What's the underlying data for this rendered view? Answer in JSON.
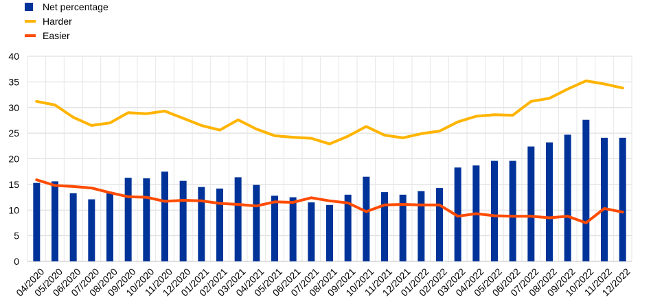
{
  "chart_data": {
    "type": "bar",
    "categories": [
      "04/2020",
      "05/2020",
      "06/2020",
      "07/2020",
      "08/2020",
      "09/2020",
      "10/2020",
      "11/2020",
      "12/2020",
      "01/2021",
      "02/2021",
      "03/2021",
      "04/2021",
      "05/2021",
      "06/2021",
      "07/2021",
      "08/2021",
      "09/2021",
      "10/2021",
      "11/2021",
      "12/2021",
      "01/2022",
      "02/2022",
      "03/2022",
      "04/2022",
      "05/2022",
      "06/2022",
      "07/2022",
      "08/2022",
      "09/2022",
      "10/2022",
      "11/2022",
      "12/2022"
    ],
    "series": [
      {
        "name": "Net percentage",
        "type": "bar",
        "color": "#003399",
        "values": [
          15.3,
          15.6,
          13.3,
          12.1,
          13.3,
          16.3,
          16.2,
          17.5,
          15.7,
          14.5,
          14.2,
          16.4,
          14.9,
          12.8,
          12.5,
          11.5,
          11.0,
          13.0,
          16.5,
          13.5,
          13.0,
          13.7,
          14.3,
          18.3,
          18.7,
          19.6,
          19.6,
          22.4,
          23.2,
          24.7,
          27.6,
          24.1,
          24.1
        ]
      },
      {
        "name": "Harder",
        "type": "line",
        "color": "#FFB400",
        "values": [
          31.2,
          30.5,
          28.1,
          26.5,
          27.0,
          29.0,
          28.8,
          29.3,
          27.9,
          26.5,
          25.6,
          27.6,
          25.8,
          24.5,
          24.2,
          24.0,
          22.9,
          24.4,
          26.3,
          24.6,
          24.1,
          24.9,
          25.4,
          27.2,
          28.3,
          28.6,
          28.5,
          31.2,
          31.8,
          33.6,
          35.2,
          34.6,
          33.8
        ]
      },
      {
        "name": "Easier",
        "type": "line",
        "color": "#FF4B00",
        "values": [
          15.9,
          14.8,
          14.6,
          14.3,
          13.4,
          12.6,
          12.5,
          11.7,
          11.9,
          11.8,
          11.3,
          11.1,
          10.8,
          11.6,
          11.5,
          12.4,
          11.8,
          11.4,
          9.7,
          11.0,
          11.1,
          11.0,
          11.0,
          8.8,
          9.3,
          8.9,
          8.8,
          8.8,
          8.5,
          8.8,
          7.5,
          10.3,
          9.6
        ]
      }
    ],
    "ylim": [
      0,
      40
    ],
    "yticks": [
      0,
      5,
      10,
      15,
      20,
      25,
      30,
      35,
      40
    ],
    "grid": true,
    "legend_position": "top-left"
  }
}
